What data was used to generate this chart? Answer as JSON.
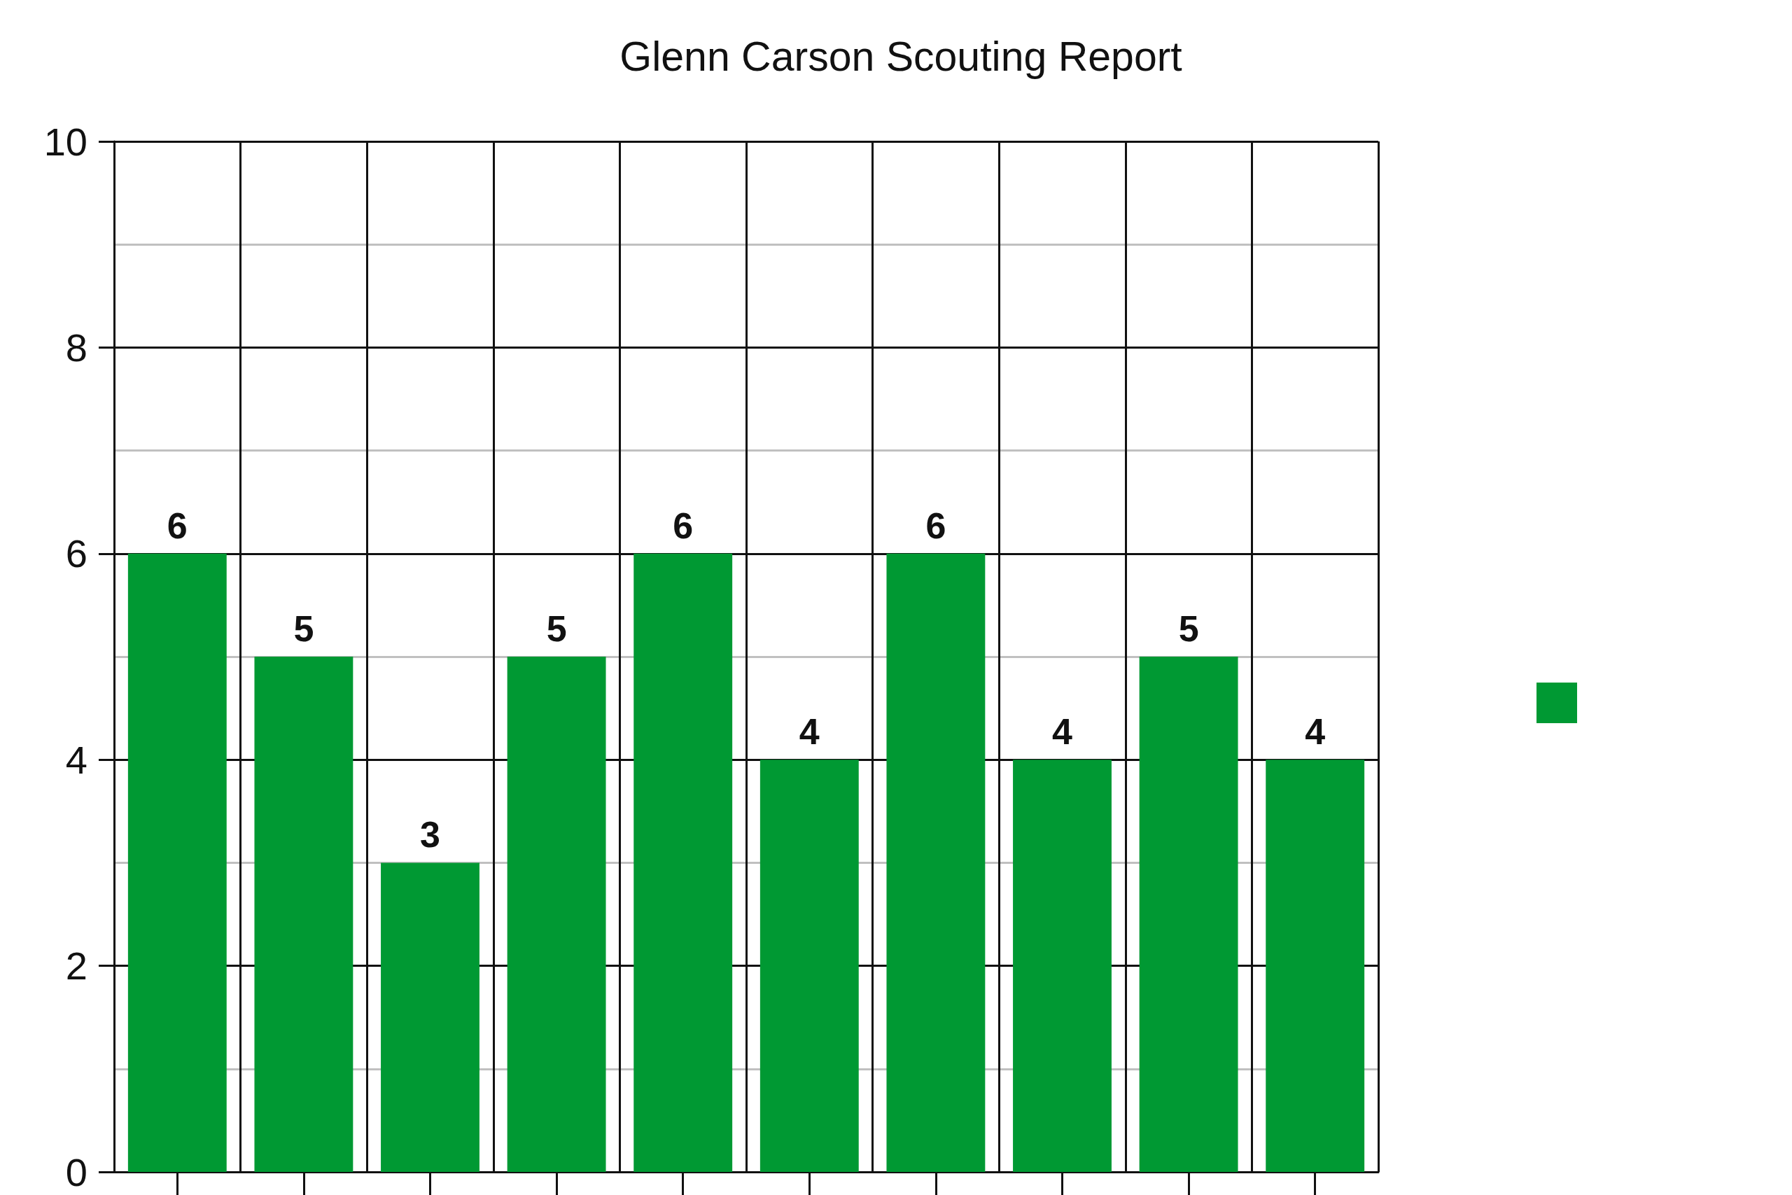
{
  "chart_data": {
    "type": "bar",
    "title": "Glenn Carson Scouting Report",
    "categories": [
      null,
      null,
      null,
      null,
      null,
      null,
      null,
      null,
      null,
      null
    ],
    "series": [
      {
        "color": "#009933",
        "values": [
          6,
          5,
          3,
          5,
          6,
          4,
          6,
          4,
          5,
          4
        ]
      }
    ],
    "ylim": [
      0,
      10
    ],
    "yticks": [
      0,
      2,
      4,
      6,
      8,
      10
    ],
    "grid": true,
    "data_labels": true
  }
}
